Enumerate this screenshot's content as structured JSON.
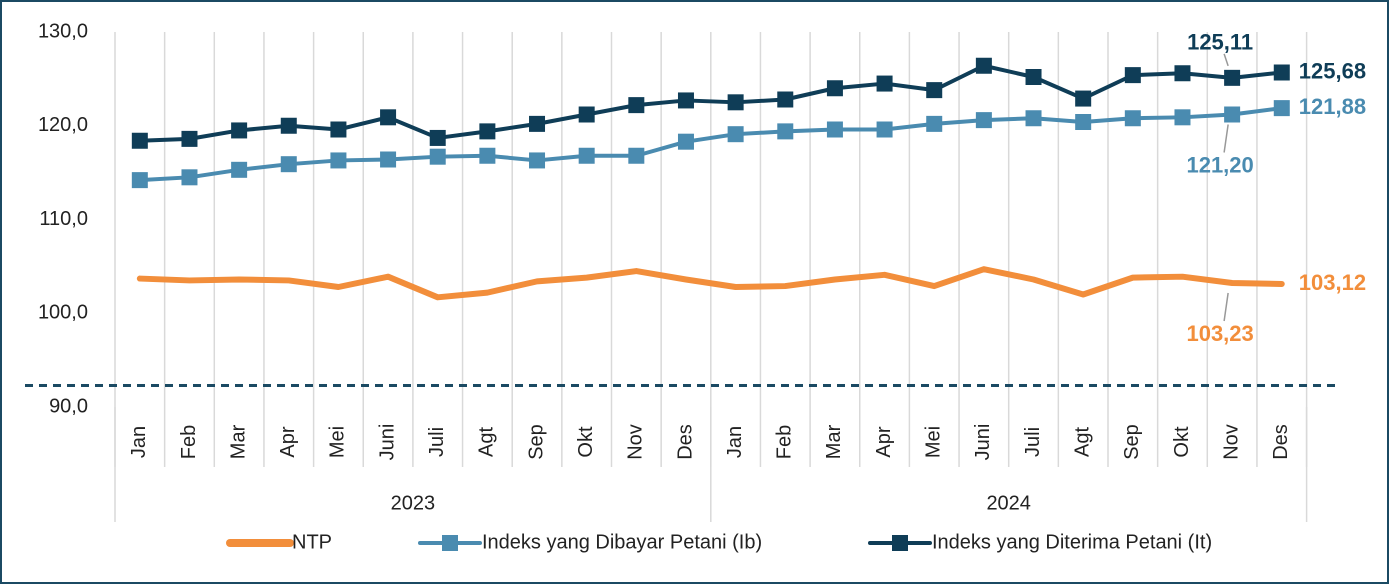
{
  "chart_data": {
    "type": "line",
    "categories": [
      "Jan",
      "Feb",
      "Mar",
      "Apr",
      "Mei",
      "Juni",
      "Juli",
      "Agt",
      "Sep",
      "Okt",
      "Nov",
      "Des",
      "Jan",
      "Feb",
      "Mar",
      "Apr",
      "Mei",
      "Juni",
      "Juli",
      "Agt",
      "Sep",
      "Okt",
      "Nov",
      "Des"
    ],
    "groups": [
      {
        "label": "2023",
        "span": 12
      },
      {
        "label": "2024",
        "span": 12
      }
    ],
    "ylim": [
      90,
      130
    ],
    "yticks": [
      {
        "value": 90,
        "label": "90,0"
      },
      {
        "value": 100,
        "label": "100,0"
      },
      {
        "value": 110,
        "label": "110,0"
      },
      {
        "value": 120,
        "label": "120,0"
      },
      {
        "value": 130,
        "label": "130,0"
      }
    ],
    "reference_line": {
      "value": 92.3,
      "color": "#1b4a63"
    },
    "series": [
      {
        "name": "NTP",
        "color": "#f28e3b",
        "marker": false,
        "values": [
          103.7,
          103.5,
          103.6,
          103.5,
          102.8,
          103.9,
          101.7,
          102.2,
          103.4,
          103.8,
          104.5,
          103.6,
          102.8,
          102.9,
          103.6,
          104.1,
          102.9,
          104.7,
          103.6,
          102.0,
          103.8,
          103.9,
          103.23,
          103.12
        ],
        "value_labels": [
          null,
          null,
          null,
          null,
          null,
          null,
          null,
          null,
          null,
          null,
          null,
          null,
          null,
          null,
          null,
          null,
          null,
          null,
          null,
          null,
          null,
          null,
          "103,23",
          "103,12"
        ]
      },
      {
        "name": "Indeks yang Dibayar Petani (Ib)",
        "color": "#4a8bb0",
        "marker": true,
        "values": [
          114.2,
          114.5,
          115.3,
          115.9,
          116.3,
          116.4,
          116.7,
          116.8,
          116.3,
          116.8,
          116.8,
          118.3,
          119.1,
          119.4,
          119.6,
          119.6,
          120.2,
          120.6,
          120.8,
          120.4,
          120.8,
          120.9,
          121.2,
          121.88
        ],
        "value_labels": [
          null,
          null,
          null,
          null,
          null,
          null,
          null,
          null,
          null,
          null,
          null,
          null,
          null,
          null,
          null,
          null,
          null,
          null,
          null,
          null,
          null,
          null,
          "121,20",
          "121,88"
        ]
      },
      {
        "name": "Indeks yang Diterima Petani (It)",
        "color": "#0f3d57",
        "marker": true,
        "values": [
          118.4,
          118.6,
          119.5,
          120.0,
          119.6,
          120.9,
          118.7,
          119.4,
          120.2,
          121.2,
          122.2,
          122.7,
          122.5,
          122.8,
          124.0,
          124.5,
          123.8,
          126.4,
          125.2,
          122.9,
          125.4,
          125.6,
          125.11,
          125.68
        ],
        "value_labels": [
          null,
          null,
          null,
          null,
          null,
          null,
          null,
          null,
          null,
          null,
          null,
          null,
          null,
          null,
          null,
          null,
          null,
          null,
          null,
          null,
          null,
          null,
          "125,11",
          "125,68"
        ]
      }
    ]
  }
}
